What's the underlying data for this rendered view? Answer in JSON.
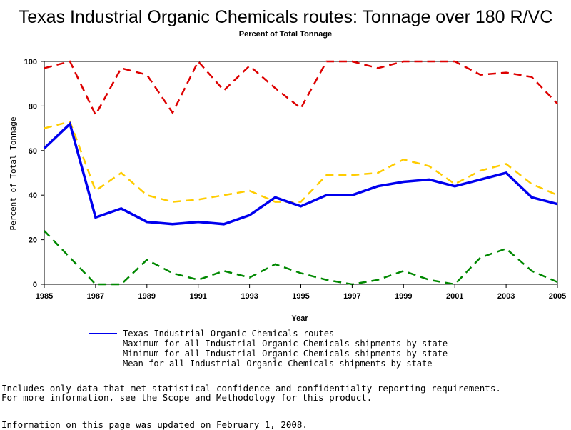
{
  "chart_data": {
    "type": "line",
    "title": "Texas Industrial Organic Chemicals routes: Tonnage over 180 R/VC",
    "subtitle": "Percent of Total Tonnage",
    "xlabel": "Year",
    "ylabel": "Percent of Total Tonnage",
    "xlim": [
      1985,
      2005
    ],
    "ylim": [
      0,
      100
    ],
    "xticks": [
      1985,
      1987,
      1989,
      1991,
      1993,
      1995,
      1997,
      1999,
      2001,
      2003,
      2005
    ],
    "yticks": [
      0,
      20,
      40,
      60,
      80,
      100
    ],
    "x": [
      1985,
      1986,
      1987,
      1988,
      1989,
      1990,
      1991,
      1992,
      1993,
      1994,
      1995,
      1996,
      1997,
      1998,
      1999,
      2000,
      2001,
      2002,
      2003,
      2004,
      2005
    ],
    "series": [
      {
        "name": "Texas Industrial Organic Chemicals routes",
        "color": "#0000ee",
        "dash": "solid",
        "values": [
          61,
          72,
          30,
          34,
          28,
          27,
          28,
          27,
          31,
          39,
          35,
          40,
          40,
          44,
          46,
          47,
          44,
          47,
          50,
          39,
          36
        ]
      },
      {
        "name": "Maximum for all Industrial Organic Chemicals shipments by state",
        "color": "#dd0000",
        "dash": "dashed",
        "values": [
          97,
          100,
          76,
          97,
          94,
          77,
          100,
          87,
          98,
          88,
          79,
          100,
          100,
          97,
          100,
          100,
          100,
          94,
          95,
          93,
          81
        ]
      },
      {
        "name": "Minimum for all Industrial Organic Chemicals shipments by state",
        "color": "#008800",
        "dash": "dashed",
        "values": [
          24,
          12,
          0,
          0,
          11,
          5,
          2,
          6,
          3,
          9,
          5,
          2,
          0,
          2,
          6,
          2,
          0,
          12,
          16,
          6,
          1
        ]
      },
      {
        "name": "Mean for all Industrial Organic Chemicals shipments by state",
        "color": "#ffcc00",
        "dash": "dashed",
        "values": [
          70,
          73,
          42,
          50,
          40,
          37,
          38,
          40,
          42,
          37,
          37,
          49,
          49,
          50,
          56,
          53,
          45,
          51,
          54,
          45,
          40
        ]
      }
    ],
    "legend_position": "bottom",
    "grid": false
  },
  "notes": {
    "line1": "Includes only data that met statistical confidence and confidentialty reporting requirements.",
    "line2": "For more information, see the Scope and Methodology for this product.",
    "line3": "Information on this page was updated on February 1, 2008."
  }
}
